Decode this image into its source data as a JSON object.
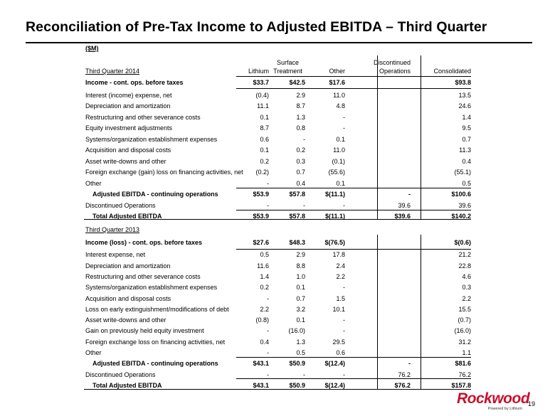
{
  "title": "Reconciliation of Pre-Tax Income to Adjusted EBITDA – Third Quarter",
  "unit": "($M)",
  "columns": {
    "lithium": "Lithium",
    "surface_line1": "Surface",
    "surface_line2": "Treatment",
    "other": "Other",
    "disc_line1": "Discontinued",
    "disc_line2": "Operations",
    "consolidated": "Consolidated"
  },
  "section_2014": {
    "heading": "Third Quarter 2014",
    "rows": [
      {
        "label": "Income - cont. ops. before taxes",
        "values": [
          "$33.7",
          "$42.5",
          "$17.6",
          "",
          "$93.8"
        ]
      },
      {
        "label": "Interest (income) expense, net",
        "values": [
          "(0.4)",
          "2.9",
          "11.0",
          "",
          "13.5"
        ]
      },
      {
        "label": "Depreciation and amortization",
        "values": [
          "11.1",
          "8.7",
          "4.8",
          "",
          "24.6"
        ]
      },
      {
        "label": "Restructuring and other severance costs",
        "values": [
          "0.1",
          "1.3",
          "-",
          "",
          "1.4"
        ]
      },
      {
        "label": "Equity investment adjustments",
        "values": [
          "8.7",
          "0.8",
          "-",
          "",
          "9.5"
        ]
      },
      {
        "label": "Systems/organization establishment expenses",
        "values": [
          "0.6",
          "-",
          "0.1",
          "",
          "0.7"
        ]
      },
      {
        "label": "Acquisition and disposal costs",
        "values": [
          "0.1",
          "0.2",
          "11.0",
          "",
          "11.3"
        ]
      },
      {
        "label": "Asset write-downs and other",
        "values": [
          "0.2",
          "0.3",
          "(0.1)",
          "",
          "0.4"
        ]
      },
      {
        "label": "Foreign exchange (gain) loss on financing activities, net",
        "values": [
          "(0.2)",
          "0.7",
          "(55.6)",
          "",
          "(55.1)"
        ]
      },
      {
        "label": "Other",
        "values": [
          "-",
          "0.4",
          "0.1",
          "",
          "0.5"
        ]
      },
      {
        "label": "Adjusted EBITDA - continuing operations",
        "values": [
          "$53.9",
          "$57.8",
          "$(11.1)",
          "-",
          "$100.6"
        ]
      },
      {
        "label": "Discontinued Operations",
        "values": [
          "-",
          "-",
          "-",
          "39.6",
          "39.6"
        ]
      },
      {
        "label": "Total Adjusted EBITDA",
        "values": [
          "$53.9",
          "$57.8",
          "$(11.1)",
          "$39.6",
          "$140.2"
        ]
      }
    ]
  },
  "section_2013": {
    "heading": "Third Quarter 2013",
    "rows": [
      {
        "label": "Income (loss) - cont. ops. before taxes",
        "values": [
          "$27.6",
          "$48.3",
          "$(76.5)",
          "",
          "$(0.6)"
        ]
      },
      {
        "label": "Interest expense, net",
        "values": [
          "0.5",
          "2.9",
          "17.8",
          "",
          "21.2"
        ]
      },
      {
        "label": "Depreciation and amortization",
        "values": [
          "11.6",
          "8.8",
          "2.4",
          "",
          "22.8"
        ]
      },
      {
        "label": "Restructuring and other severance costs",
        "values": [
          "1.4",
          "1.0",
          "2.2",
          "",
          "4.6"
        ]
      },
      {
        "label": "Systems/organization establishment expenses",
        "values": [
          "0.2",
          "0.1",
          "-",
          "",
          "0.3"
        ]
      },
      {
        "label": "Acquisition and disposal costs",
        "values": [
          "-",
          "0.7",
          "1.5",
          "",
          "2.2"
        ]
      },
      {
        "label": "Loss on early extinguishment/modifications of debt",
        "values": [
          "2.2",
          "3.2",
          "10.1",
          "",
          "15.5"
        ]
      },
      {
        "label": "Asset write-downs and other",
        "values": [
          "(0.8)",
          "0.1",
          "-",
          "",
          "(0.7)"
        ]
      },
      {
        "label": "Gain on previously held equity investment",
        "values": [
          "-",
          "(16.0)",
          "-",
          "",
          "(16.0)"
        ]
      },
      {
        "label": "Foreign exchange loss on financing activities, net",
        "values": [
          "0.4",
          "1.3",
          "29.5",
          "",
          "31.2"
        ]
      },
      {
        "label": "Other",
        "values": [
          "-",
          "0.5",
          "0.6",
          "",
          "1.1"
        ]
      },
      {
        "label": "Adjusted EBITDA - continuing operations",
        "values": [
          "$43.1",
          "$50.9",
          "$(12.4)",
          "-",
          "$81.6"
        ]
      },
      {
        "label": "Discontinued Operations",
        "values": [
          "-",
          "-",
          "-",
          "76.2",
          "76.2"
        ]
      },
      {
        "label": "Total Adjusted EBITDA",
        "values": [
          "$43.1",
          "$50.9",
          "$(12.4)",
          "$76.2",
          "$157.8"
        ]
      }
    ]
  },
  "footer": {
    "page_number": "19",
    "logo_text": "Rockwood",
    "logo_tagline": "Powered by Lithium"
  }
}
